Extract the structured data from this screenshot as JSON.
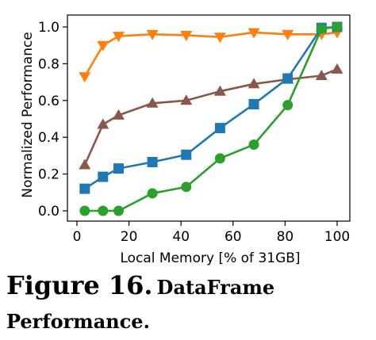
{
  "caption": {
    "label": "Figure 16.",
    "title": "DataFrame Performance."
  },
  "chart_data": {
    "type": "line",
    "title": "",
    "xlabel": "Local Memory [% of 31GB]",
    "ylabel": "Normalized Performance",
    "xlim": [
      0,
      100
    ],
    "ylim": [
      0,
      1.0
    ],
    "xticks": [
      0,
      20,
      40,
      60,
      80,
      100
    ],
    "yticks": [
      0.0,
      0.2,
      0.4,
      0.6,
      0.8,
      1.0
    ],
    "xtick_labels": [
      "0",
      "20",
      "40",
      "60",
      "80",
      "100"
    ],
    "ytick_labels": [
      "0.0",
      "0.2",
      "0.4",
      "0.6",
      "0.8",
      "1.0"
    ],
    "grid": false,
    "legend": false,
    "series": [
      {
        "color": "#ff7f0e",
        "marker": "triangle-down",
        "x": [
          3,
          10,
          16,
          29,
          42,
          55,
          68,
          81,
          94,
          100
        ],
        "y": [
          0.73,
          0.9,
          0.95,
          0.96,
          0.955,
          0.945,
          0.97,
          0.96,
          0.96,
          0.97
        ]
      },
      {
        "color": "#8c564b",
        "marker": "triangle-up",
        "x": [
          3,
          10,
          16,
          29,
          42,
          55,
          68,
          81,
          94,
          100
        ],
        "y": [
          0.25,
          0.47,
          0.52,
          0.585,
          0.6,
          0.65,
          0.69,
          0.715,
          0.735,
          0.77
        ]
      },
      {
        "color": "#1f77b4",
        "marker": "square",
        "x": [
          3,
          10,
          16,
          29,
          42,
          55,
          68,
          81,
          94,
          100
        ],
        "y": [
          0.12,
          0.185,
          0.23,
          0.265,
          0.305,
          0.45,
          0.58,
          0.72,
          0.995,
          1.0
        ]
      },
      {
        "color": "#2ca02c",
        "marker": "circle",
        "x": [
          3,
          10,
          16,
          29,
          42,
          55,
          68,
          81,
          94,
          100
        ],
        "y": [
          0.0,
          0.0,
          0.0,
          0.095,
          0.13,
          0.285,
          0.36,
          0.575,
          0.99,
          1.0
        ]
      }
    ]
  }
}
